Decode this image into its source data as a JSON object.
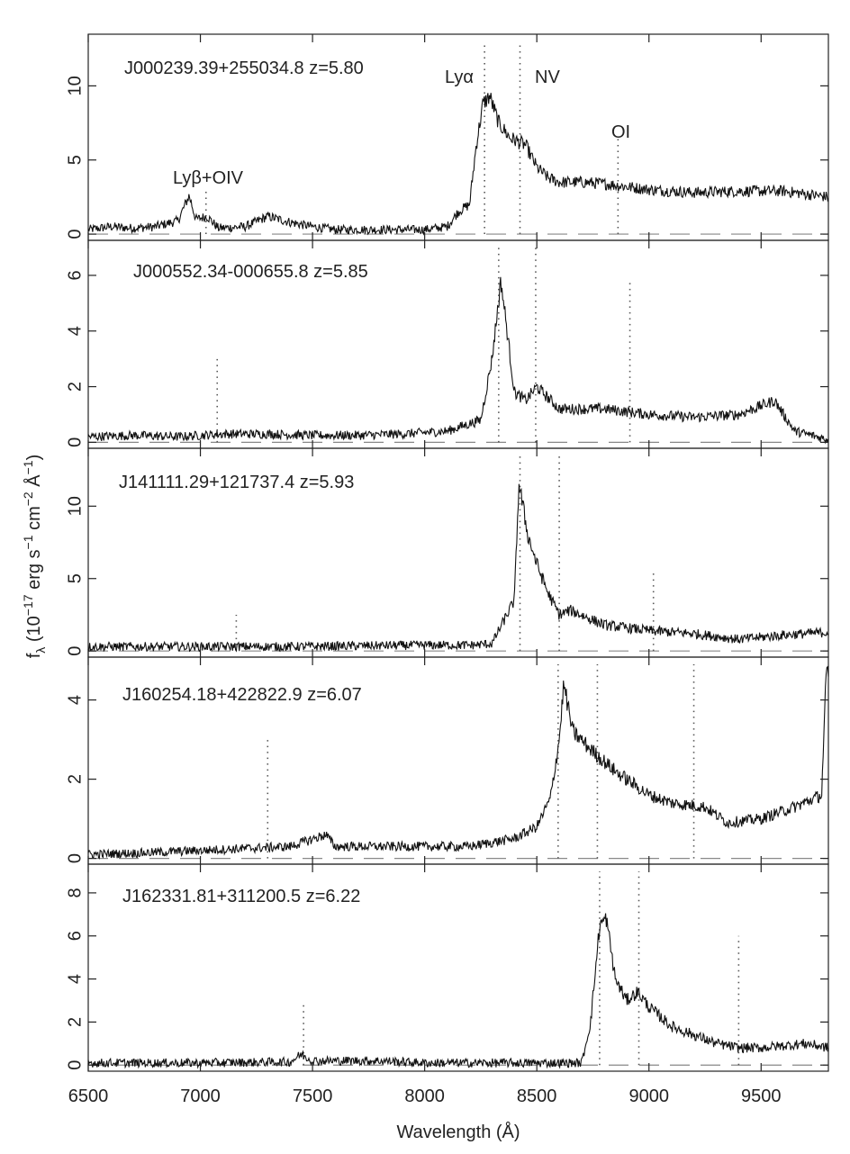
{
  "chart_data": {
    "type": "line",
    "xlabel": "Wavelength (Å)",
    "ylabel": "f_λ (10^-17 erg s^-1 cm^-2 Å^-1)",
    "xlim": [
      6500,
      9800
    ],
    "x_ticks": [
      6500,
      7000,
      7500,
      8000,
      8500,
      9000,
      9500
    ],
    "x_tick_labels": [
      "6500",
      "7000",
      "7500",
      "8000",
      "8500",
      "9000",
      "9500"
    ],
    "grid": false,
    "line_labels": [
      "Lyα",
      "NV",
      "OI",
      "Lyβ+OIV"
    ],
    "panels": [
      {
        "label": "J000239.39+255034.8 z=5.80",
        "redshift": 5.8,
        "ylim": [
          -0.3,
          13
        ],
        "y_ticks": [
          0,
          5,
          10
        ],
        "y_tick_labels": [
          "0",
          "5",
          "10"
        ],
        "line_marks": [
          {
            "x": 7025,
            "y_top": 3.0
          },
          {
            "x": 8267,
            "y_top": 13.0
          },
          {
            "x": 8425,
            "y_top": 13.0
          },
          {
            "x": 8862,
            "y_top": 6.5
          }
        ],
        "spectrum": [
          [
            6500,
            0.3
          ],
          [
            6600,
            0.5
          ],
          [
            6700,
            0.4
          ],
          [
            6800,
            0.5
          ],
          [
            6900,
            0.9
          ],
          [
            6950,
            2.6
          ],
          [
            6980,
            1.0
          ],
          [
            7030,
            1.2
          ],
          [
            7080,
            0.4
          ],
          [
            7200,
            0.5
          ],
          [
            7300,
            1.2
          ],
          [
            7400,
            0.8
          ],
          [
            7500,
            0.5
          ],
          [
            7600,
            0.3
          ],
          [
            7800,
            0.3
          ],
          [
            8000,
            0.3
          ],
          [
            8100,
            0.5
          ],
          [
            8150,
            1.5
          ],
          [
            8200,
            2.0
          ],
          [
            8230,
            6.0
          ],
          [
            8260,
            8.8
          ],
          [
            8290,
            9.3
          ],
          [
            8330,
            7.5
          ],
          [
            8380,
            6.5
          ],
          [
            8450,
            6.0
          ],
          [
            8500,
            4.5
          ],
          [
            8550,
            3.8
          ],
          [
            8600,
            3.5
          ],
          [
            8700,
            3.5
          ],
          [
            8800,
            3.4
          ],
          [
            8900,
            3.2
          ],
          [
            9000,
            3.0
          ],
          [
            9200,
            2.8
          ],
          [
            9400,
            2.9
          ],
          [
            9600,
            2.9
          ],
          [
            9800,
            2.5
          ]
        ]
      },
      {
        "label": "J000552.34-000655.8 z=5.85",
        "redshift": 5.85,
        "ylim": [
          -0.15,
          7
        ],
        "y_ticks": [
          0,
          2,
          4,
          6
        ],
        "y_tick_labels": [
          "0",
          "2",
          "4",
          "6"
        ],
        "line_marks": [
          {
            "x": 7075,
            "y_top": 3.0
          },
          {
            "x": 8330,
            "y_top": 7.0
          },
          {
            "x": 8495,
            "y_top": 7.0
          },
          {
            "x": 8915,
            "y_top": 5.8
          }
        ],
        "spectrum": [
          [
            6500,
            0.2
          ],
          [
            6700,
            0.25
          ],
          [
            6900,
            0.2
          ],
          [
            7100,
            0.3
          ],
          [
            7300,
            0.3
          ],
          [
            7500,
            0.25
          ],
          [
            7700,
            0.25
          ],
          [
            7900,
            0.3
          ],
          [
            8100,
            0.4
          ],
          [
            8250,
            0.8
          ],
          [
            8300,
            3.0
          ],
          [
            8340,
            5.8
          ],
          [
            8360,
            4.5
          ],
          [
            8400,
            1.8
          ],
          [
            8450,
            1.5
          ],
          [
            8500,
            2.0
          ],
          [
            8600,
            1.2
          ],
          [
            8800,
            1.2
          ],
          [
            9000,
            1.0
          ],
          [
            9200,
            0.9
          ],
          [
            9400,
            1.0
          ],
          [
            9560,
            1.5
          ],
          [
            9600,
            1.0
          ],
          [
            9650,
            0.4
          ],
          [
            9800,
            0.1
          ]
        ]
      },
      {
        "label": "J141111.29+121737.4 z=5.93",
        "redshift": 5.93,
        "ylim": [
          -0.3,
          13.5
        ],
        "y_ticks": [
          0,
          5,
          10
        ],
        "y_tick_labels": [
          "0",
          "5",
          "10"
        ],
        "line_marks": [
          {
            "x": 7160,
            "y_top": 2.5
          },
          {
            "x": 8425,
            "y_top": 13.5
          },
          {
            "x": 8600,
            "y_top": 13.5
          },
          {
            "x": 9020,
            "y_top": 5.5
          }
        ],
        "spectrum": [
          [
            6500,
            0.3
          ],
          [
            6800,
            0.3
          ],
          [
            7100,
            0.3
          ],
          [
            7400,
            0.3
          ],
          [
            7700,
            0.35
          ],
          [
            8000,
            0.4
          ],
          [
            8200,
            0.4
          ],
          [
            8300,
            0.5
          ],
          [
            8350,
            2.0
          ],
          [
            8400,
            3.5
          ],
          [
            8420,
            11.6
          ],
          [
            8460,
            8.0
          ],
          [
            8500,
            6.0
          ],
          [
            8550,
            4.0
          ],
          [
            8600,
            2.5
          ],
          [
            8650,
            2.8
          ],
          [
            8800,
            1.8
          ],
          [
            9000,
            1.4
          ],
          [
            9200,
            1.2
          ],
          [
            9400,
            0.8
          ],
          [
            9600,
            1.1
          ],
          [
            9800,
            1.3
          ]
        ]
      },
      {
        "label": "J160254.18+422822.9 z=6.07",
        "redshift": 6.07,
        "ylim": [
          -0.1,
          4.9
        ],
        "y_ticks": [
          0,
          2,
          4
        ],
        "y_tick_labels": [
          "0",
          "2",
          "4"
        ],
        "line_marks": [
          {
            "x": 7300,
            "y_top": 3.0
          },
          {
            "x": 8595,
            "y_top": 4.9
          },
          {
            "x": 8770,
            "y_top": 4.9
          },
          {
            "x": 9200,
            "y_top": 4.9
          }
        ],
        "spectrum": [
          [
            6500,
            0.1
          ],
          [
            6800,
            0.15
          ],
          [
            7000,
            0.2
          ],
          [
            7200,
            0.25
          ],
          [
            7400,
            0.3
          ],
          [
            7560,
            0.6
          ],
          [
            7600,
            0.3
          ],
          [
            7800,
            0.3
          ],
          [
            8000,
            0.3
          ],
          [
            8200,
            0.3
          ],
          [
            8400,
            0.5
          ],
          [
            8500,
            0.8
          ],
          [
            8560,
            1.5
          ],
          [
            8600,
            3.0
          ],
          [
            8620,
            4.4
          ],
          [
            8660,
            3.2
          ],
          [
            8750,
            2.7
          ],
          [
            8850,
            2.2
          ],
          [
            9000,
            1.6
          ],
          [
            9100,
            1.4
          ],
          [
            9250,
            1.3
          ],
          [
            9350,
            0.9
          ],
          [
            9500,
            1.0
          ],
          [
            9650,
            1.3
          ],
          [
            9770,
            1.6
          ],
          [
            9790,
            4.6
          ]
        ]
      },
      {
        "label": "J162331.81+311200.5 z=6.22",
        "redshift": 6.22,
        "ylim": [
          -0.2,
          9
        ],
        "y_ticks": [
          0,
          2,
          4,
          6,
          8
        ],
        "y_tick_labels": [
          "0",
          "2",
          "4",
          "6",
          "8"
        ],
        "line_marks": [
          {
            "x": 7460,
            "y_top": 2.8
          },
          {
            "x": 8780,
            "y_top": 9.0
          },
          {
            "x": 8955,
            "y_top": 9.0
          },
          {
            "x": 9400,
            "y_top": 6.0
          }
        ],
        "spectrum": [
          [
            6500,
            0.1
          ],
          [
            7000,
            0.1
          ],
          [
            7400,
            0.15
          ],
          [
            7450,
            0.5
          ],
          [
            7500,
            0.2
          ],
          [
            7800,
            0.2
          ],
          [
            8000,
            0.1
          ],
          [
            8300,
            0.1
          ],
          [
            8600,
            0.1
          ],
          [
            8700,
            0.1
          ],
          [
            8740,
            2.0
          ],
          [
            8780,
            6.5
          ],
          [
            8810,
            6.8
          ],
          [
            8850,
            4.0
          ],
          [
            8900,
            3.0
          ],
          [
            8950,
            3.4
          ],
          [
            9000,
            2.7
          ],
          [
            9100,
            1.8
          ],
          [
            9200,
            1.4
          ],
          [
            9300,
            1.0
          ],
          [
            9400,
            0.8
          ],
          [
            9500,
            0.8
          ],
          [
            9600,
            0.9
          ],
          [
            9700,
            1.0
          ],
          [
            9800,
            0.8
          ]
        ]
      }
    ]
  }
}
